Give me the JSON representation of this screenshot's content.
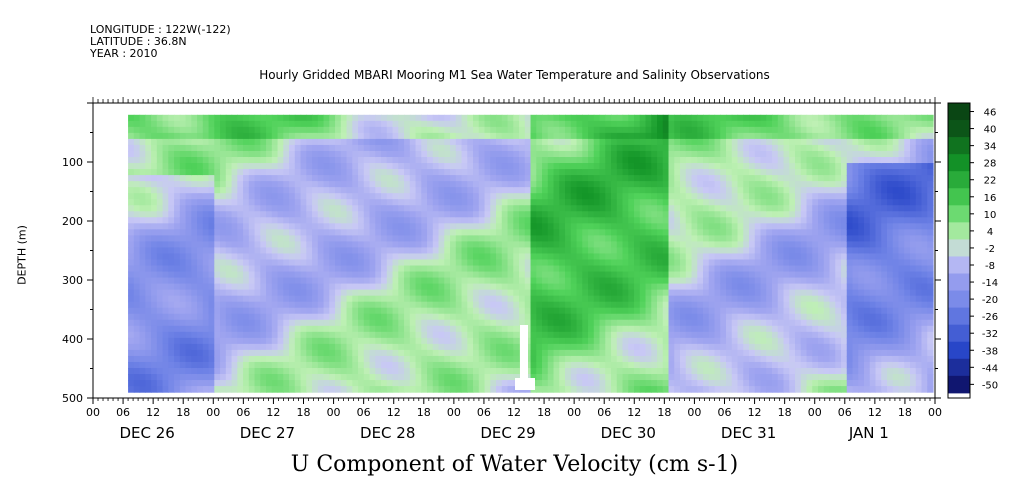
{
  "header": {
    "longitude": "LONGITUDE : 122W(-122)",
    "latitude": "LATITUDE : 36.8N",
    "year": "YEAR : 2010"
  },
  "chart_data": {
    "type": "heatmap",
    "title": "Hourly Gridded MBARI Mooring M1 Sea Water Temperature and Salinity Observations",
    "subtitle": "U Component of Water Velocity (cm s-1)",
    "ylabel": "DEPTH (m)",
    "ylim": [
      500,
      0
    ],
    "yticks": [
      100,
      200,
      300,
      400,
      500
    ],
    "xtick_hours": [
      "00",
      "06",
      "12",
      "18",
      "00",
      "06",
      "12",
      "18",
      "00",
      "06",
      "12",
      "18",
      "00",
      "06",
      "12",
      "18",
      "00",
      "06",
      "12",
      "18",
      "00",
      "06",
      "12",
      "18",
      "00",
      "06",
      "12",
      "18",
      "00"
    ],
    "day_labels": [
      "DEC 26",
      "DEC 27",
      "DEC 28",
      "DEC 29",
      "DEC 30",
      "DEC 31",
      "JAN  1"
    ],
    "colorbar_levels": [
      "46",
      "40",
      "34",
      "28",
      "22",
      "16",
      "10",
      "4",
      "-2",
      "-8",
      "-14",
      "-20",
      "-26",
      "-32",
      "-38",
      "-44",
      "-50"
    ],
    "colorbar_range": [
      -50,
      52
    ],
    "data_depth_range": [
      20,
      490
    ],
    "data_time_start": "DEC 26 06",
    "data_time_end": "JAN 1 24"
  }
}
